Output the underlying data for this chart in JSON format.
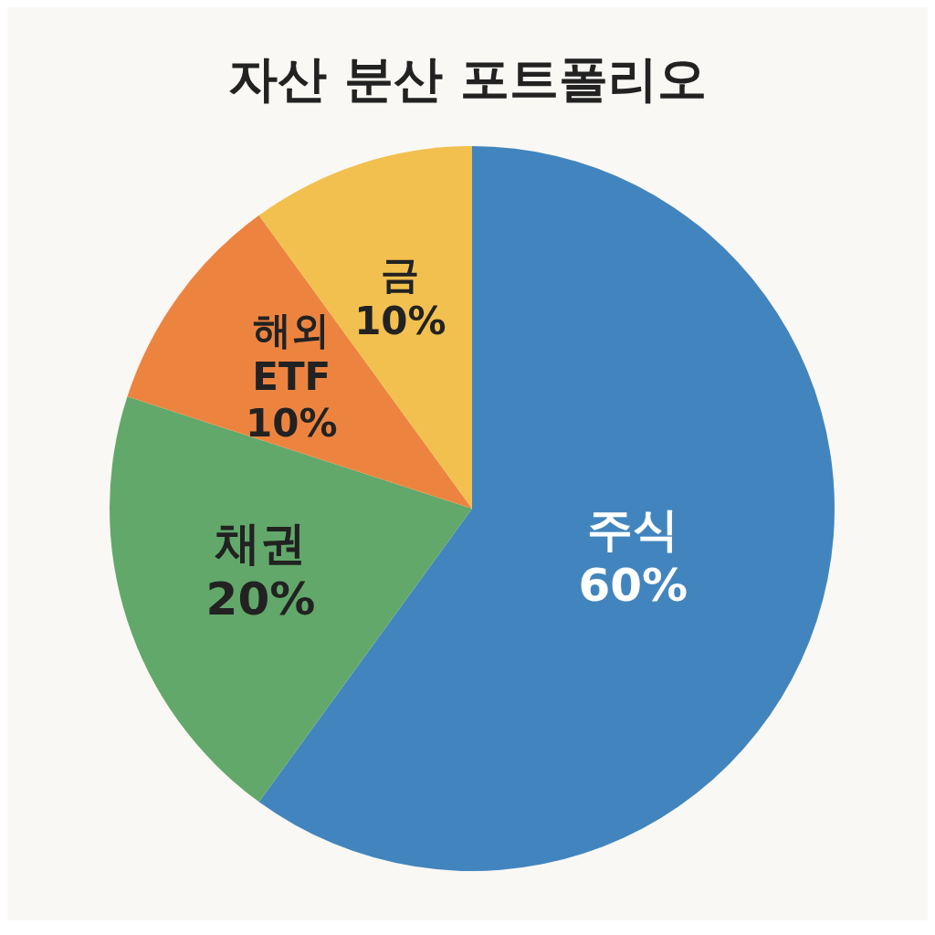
{
  "chart_data": {
    "type": "pie",
    "title": "자산 분산 포트폴리오",
    "categories": [
      "주식",
      "채권",
      "해외 ETF",
      "금"
    ],
    "values": [
      60,
      20,
      10,
      10
    ],
    "colors": [
      "#4285be",
      "#62a86a",
      "#ec8440",
      "#f2c04f"
    ],
    "value_labels": [
      "60%",
      "20%",
      "10%",
      "10%"
    ]
  }
}
